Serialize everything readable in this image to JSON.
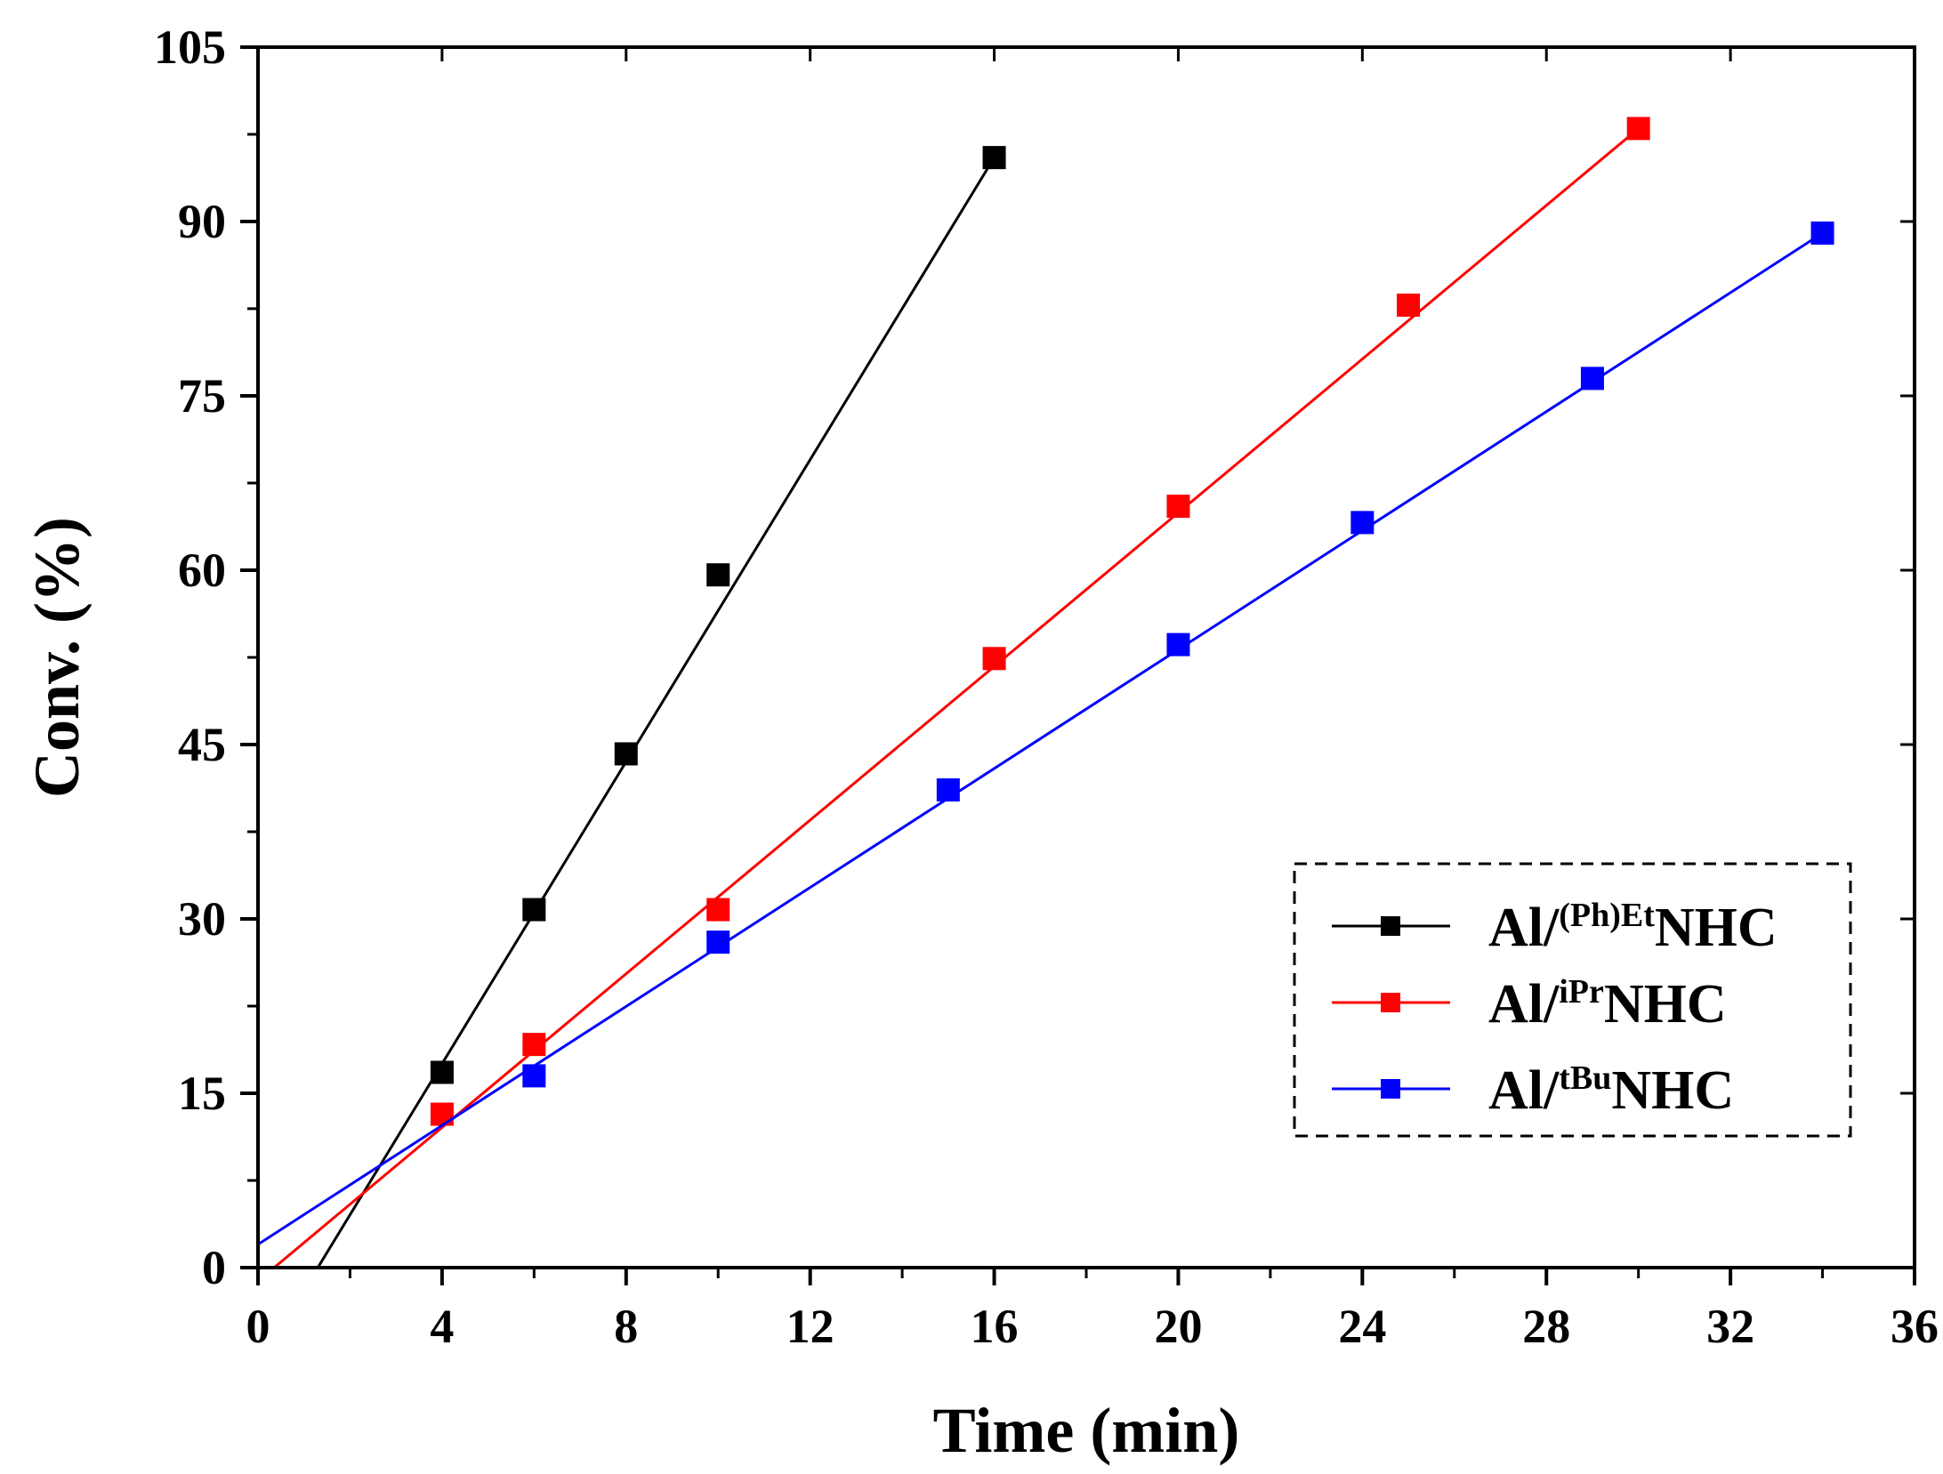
{
  "chart_data": {
    "type": "scatter",
    "xlabel": "Time (min)",
    "ylabel": "Conv. (%)",
    "xlim": [
      0,
      36
    ],
    "ylim": [
      0,
      105
    ],
    "xticks": [
      0,
      4,
      8,
      12,
      16,
      20,
      24,
      28,
      32,
      36
    ],
    "yticks": [
      0,
      15,
      30,
      45,
      60,
      75,
      90,
      105
    ],
    "legend_position": "lower-right",
    "series": [
      {
        "name": "Al/(Ph)EtNHC",
        "label_prefix": "Al/",
        "label_sup": "(Ph)Et",
        "label_suffix": "NHC",
        "color": "#000000",
        "x": [
          4,
          6,
          8,
          10,
          16
        ],
        "y": [
          16.8,
          30.8,
          44.2,
          59.6,
          95.5
        ],
        "fit": {
          "x0": 1.3,
          "y0": 0,
          "x1": 16,
          "y1": 95.5
        }
      },
      {
        "name": "Al/iPrNHC",
        "label_prefix": "Al/",
        "label_sup": "iPr",
        "label_suffix": "NHC",
        "color": "#ff0000",
        "x": [
          4,
          6,
          10,
          16,
          20,
          25,
          30
        ],
        "y": [
          13.2,
          19.2,
          30.8,
          52.4,
          65.5,
          82.8,
          98.0
        ],
        "fit": {
          "x0": 0.2,
          "y0": -0.5,
          "x1": 30,
          "y1": 98.0
        }
      },
      {
        "name": "Al/tBuNHC",
        "label_prefix": "Al/",
        "label_sup": "tBu",
        "label_suffix": "NHC",
        "color": "#0000ff",
        "x": [
          6,
          10,
          15,
          20,
          24,
          29,
          34
        ],
        "y": [
          16.5,
          28.0,
          41.1,
          53.6,
          64.1,
          76.5,
          89.0
        ],
        "fit": {
          "x0": 0,
          "y0": 2.0,
          "x1": 34,
          "y1": 89.0
        }
      }
    ]
  }
}
